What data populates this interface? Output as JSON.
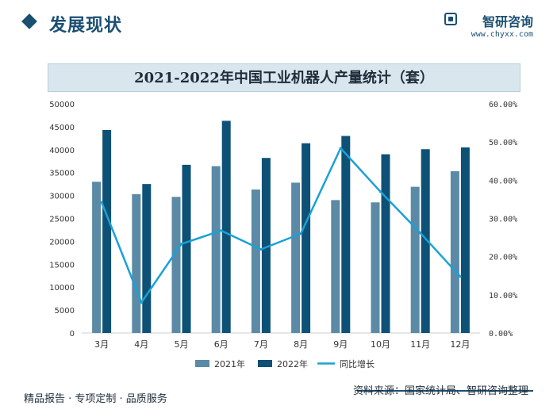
{
  "header": {
    "section_title": "发展现状",
    "logo_name": "智研咨询",
    "logo_url": "www.chyxx.com"
  },
  "chart_title": "2021-2022年中国工业机器人产量统计（套）",
  "colors": {
    "series_2021": "#5b8aa6",
    "series_2022": "#0e5176",
    "growth_line": "#1aa1d6",
    "axis": "#cfcfcf"
  },
  "chart_data": {
    "type": "bar",
    "categories": [
      "3月",
      "4月",
      "5月",
      "6月",
      "7月",
      "8月",
      "9月",
      "10月",
      "11月",
      "12月"
    ],
    "series": [
      {
        "name": "2021年",
        "values": [
          33000,
          30300,
          29700,
          36400,
          31300,
          32800,
          29000,
          28500,
          31900,
          35300
        ]
      },
      {
        "name": "2022年",
        "values": [
          44300,
          32500,
          36700,
          46300,
          38200,
          41400,
          43000,
          39000,
          40100,
          40500
        ]
      },
      {
        "name": "同比增长",
        "type": "line",
        "axis": "right",
        "values": [
          0.342,
          0.08,
          0.233,
          0.268,
          0.219,
          0.26,
          0.484,
          0.37,
          0.262,
          0.148
        ]
      }
    ],
    "y_left": {
      "min": 0,
      "max": 50000,
      "ticks": [
        0,
        5000,
        10000,
        15000,
        20000,
        25000,
        30000,
        35000,
        40000,
        45000,
        50000
      ]
    },
    "y_right": {
      "min": 0,
      "max": 0.6,
      "ticks": [
        "0.00%",
        "10.00%",
        "20.00%",
        "30.00%",
        "40.00%",
        "50.00%",
        "60.00%"
      ]
    },
    "legend_position": "bottom",
    "grid": false
  },
  "footer": {
    "left": "精品报告 · 专项定制 · 品质服务",
    "right": "资料来源：国家统计局、智研咨询整理"
  }
}
